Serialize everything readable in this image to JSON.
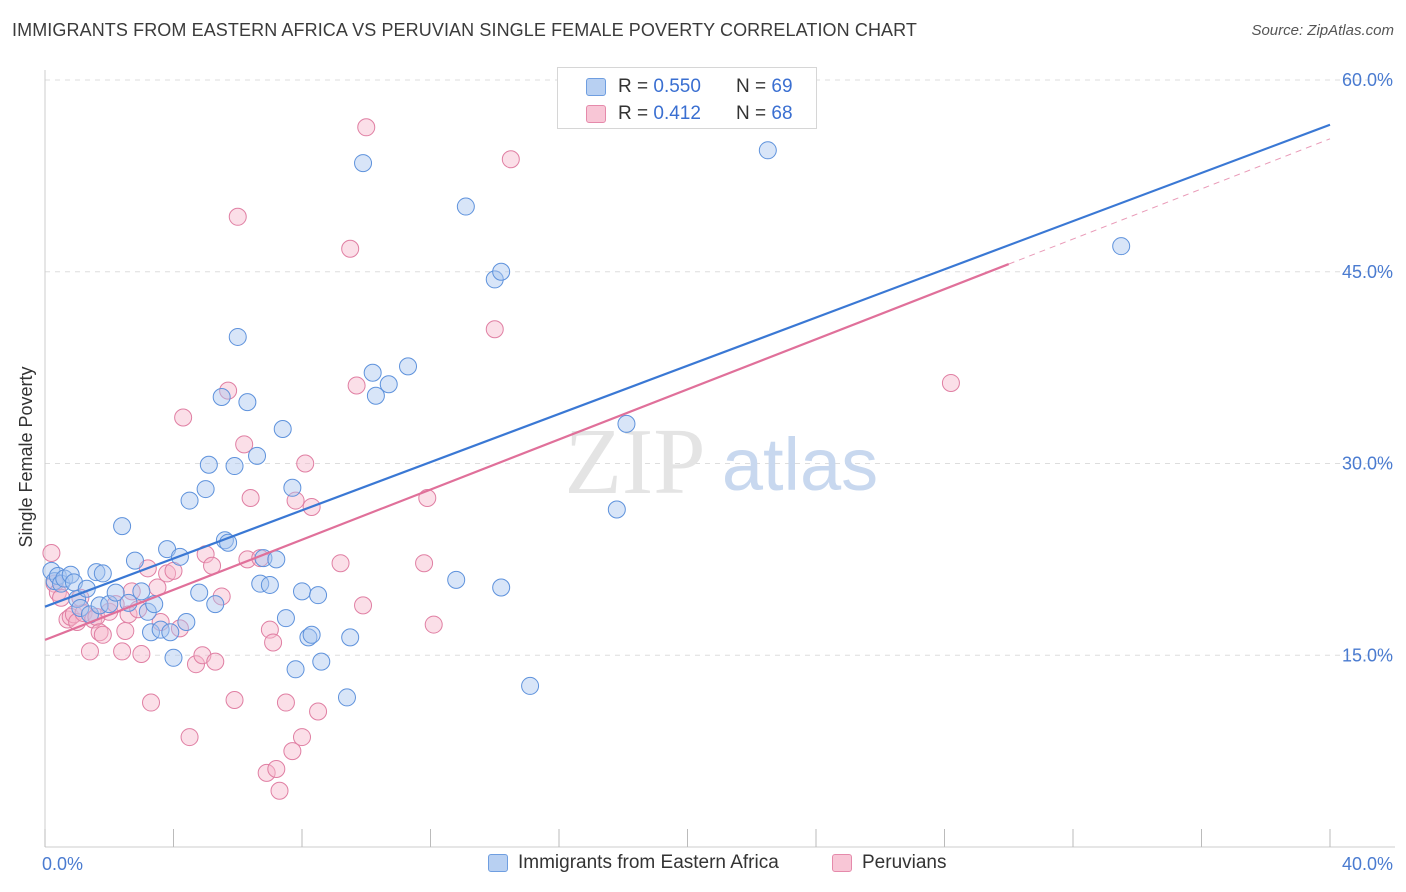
{
  "title": "IMMIGRANTS FROM EASTERN AFRICA VS PERUVIAN SINGLE FEMALE POVERTY CORRELATION CHART",
  "source": "Source: ZipAtlas.com",
  "watermark": {
    "zip": "ZIP",
    "atlas": "atlas"
  },
  "legend": {
    "series1": {
      "r_label": "R =",
      "r_value": "0.550",
      "n_label": "N =",
      "n_value": "69"
    },
    "series2": {
      "r_label": "R =",
      "r_value": "0.412",
      "n_label": "N =",
      "n_value": "68"
    }
  },
  "bottom_legend": {
    "series1_label": "Immigrants from Eastern Africa",
    "series2_label": "Peruvians"
  },
  "colors": {
    "blue": "#3a78d4",
    "pink": "#e0709a",
    "blue_fill": "#a9c6ef",
    "pink_fill": "#f6b9cc"
  },
  "chart_data": {
    "type": "scatter",
    "title": "IMMIGRANTS FROM EASTERN AFRICA VS PERUVIAN SINGLE FEMALE POVERTY CORRELATION CHART",
    "xlabel": "",
    "ylabel": "Single Female Poverty",
    "xlim": [
      0,
      40
    ],
    "ylim": [
      0,
      60
    ],
    "x_ticks_labels": [
      "0.0%",
      "40.0%"
    ],
    "y_ticks": [
      15,
      30,
      45,
      60
    ],
    "y_tick_labels": [
      "15.0%",
      "30.0%",
      "45.0%",
      "60.0%"
    ],
    "series": [
      {
        "name": "Immigrants from Eastern Africa",
        "color": "#3a78d4",
        "r": 0.55,
        "n": 69,
        "trend": {
          "x": [
            0,
            40
          ],
          "y": [
            18.8,
            56.5
          ]
        },
        "points": [
          [
            0.2,
            21.6
          ],
          [
            0.3,
            20.8
          ],
          [
            0.4,
            21.2
          ],
          [
            0.5,
            20.6
          ],
          [
            0.6,
            21.0
          ],
          [
            0.8,
            21.3
          ],
          [
            0.9,
            20.7
          ],
          [
            1.0,
            19.4
          ],
          [
            1.1,
            18.7
          ],
          [
            1.3,
            20.2
          ],
          [
            1.4,
            18.2
          ],
          [
            1.6,
            21.5
          ],
          [
            1.7,
            18.9
          ],
          [
            1.8,
            21.4
          ],
          [
            2.0,
            19.0
          ],
          [
            2.2,
            19.9
          ],
          [
            2.4,
            25.1
          ],
          [
            2.6,
            19.1
          ],
          [
            2.8,
            22.4
          ],
          [
            3.0,
            20.0
          ],
          [
            3.2,
            18.4
          ],
          [
            3.3,
            16.8
          ],
          [
            3.4,
            19.0
          ],
          [
            3.6,
            17.0
          ],
          [
            3.8,
            23.3
          ],
          [
            3.9,
            16.8
          ],
          [
            4.0,
            14.8
          ],
          [
            4.2,
            22.7
          ],
          [
            4.4,
            17.6
          ],
          [
            4.5,
            27.1
          ],
          [
            4.8,
            19.9
          ],
          [
            5.0,
            28.0
          ],
          [
            5.1,
            29.9
          ],
          [
            5.3,
            19.0
          ],
          [
            5.5,
            35.2
          ],
          [
            5.6,
            24.0
          ],
          [
            5.7,
            23.8
          ],
          [
            5.9,
            29.8
          ],
          [
            6.0,
            39.9
          ],
          [
            6.3,
            34.8
          ],
          [
            6.6,
            30.6
          ],
          [
            6.7,
            20.6
          ],
          [
            6.8,
            22.6
          ],
          [
            7.0,
            20.5
          ],
          [
            7.2,
            22.5
          ],
          [
            7.4,
            32.7
          ],
          [
            7.5,
            17.9
          ],
          [
            7.7,
            28.1
          ],
          [
            7.8,
            13.9
          ],
          [
            8.0,
            20.0
          ],
          [
            8.2,
            16.4
          ],
          [
            8.3,
            16.6
          ],
          [
            8.5,
            19.7
          ],
          [
            8.6,
            14.5
          ],
          [
            9.4,
            11.7
          ],
          [
            9.5,
            16.4
          ],
          [
            9.9,
            53.5
          ],
          [
            10.2,
            37.1
          ],
          [
            10.3,
            35.3
          ],
          [
            10.7,
            36.2
          ],
          [
            11.3,
            37.6
          ],
          [
            12.8,
            20.9
          ],
          [
            13.1,
            50.1
          ],
          [
            14.0,
            44.4
          ],
          [
            14.2,
            45.0
          ],
          [
            14.2,
            20.3
          ],
          [
            15.1,
            12.6
          ],
          [
            17.8,
            26.4
          ],
          [
            18.1,
            33.1
          ],
          [
            22.5,
            54.5
          ],
          [
            33.5,
            47.0
          ]
        ]
      },
      {
        "name": "Peruvians",
        "color": "#e0709a",
        "r": 0.412,
        "n": 68,
        "trend": {
          "x": [
            0,
            30
          ],
          "y": [
            16.2,
            45.6
          ]
        },
        "trend_extension": {
          "x": [
            30,
            40
          ],
          "y": [
            45.6,
            55.4
          ]
        },
        "points": [
          [
            0.2,
            23.0
          ],
          [
            0.3,
            20.6
          ],
          [
            0.4,
            19.9
          ],
          [
            0.5,
            19.5
          ],
          [
            0.7,
            17.8
          ],
          [
            0.8,
            18.0
          ],
          [
            0.9,
            18.2
          ],
          [
            1.0,
            17.6
          ],
          [
            1.1,
            19.5
          ],
          [
            1.2,
            18.3
          ],
          [
            1.4,
            15.3
          ],
          [
            1.5,
            17.8
          ],
          [
            1.6,
            18.0
          ],
          [
            1.7,
            16.8
          ],
          [
            1.8,
            16.6
          ],
          [
            2.0,
            18.4
          ],
          [
            2.2,
            19.0
          ],
          [
            2.4,
            15.3
          ],
          [
            2.5,
            16.9
          ],
          [
            2.6,
            18.2
          ],
          [
            2.7,
            20.0
          ],
          [
            2.9,
            18.6
          ],
          [
            3.0,
            15.1
          ],
          [
            3.2,
            21.8
          ],
          [
            3.3,
            11.3
          ],
          [
            3.5,
            20.3
          ],
          [
            3.6,
            17.6
          ],
          [
            3.8,
            21.4
          ],
          [
            4.0,
            21.6
          ],
          [
            4.2,
            17.1
          ],
          [
            4.3,
            33.6
          ],
          [
            4.5,
            8.6
          ],
          [
            4.7,
            14.3
          ],
          [
            4.9,
            15.0
          ],
          [
            5.0,
            22.9
          ],
          [
            5.2,
            22.0
          ],
          [
            5.3,
            14.5
          ],
          [
            5.5,
            19.6
          ],
          [
            5.7,
            35.7
          ],
          [
            5.9,
            11.5
          ],
          [
            6.0,
            49.3
          ],
          [
            6.2,
            31.5
          ],
          [
            6.3,
            22.5
          ],
          [
            6.4,
            27.3
          ],
          [
            6.7,
            22.6
          ],
          [
            6.9,
            5.8
          ],
          [
            7.0,
            17.0
          ],
          [
            7.1,
            16.0
          ],
          [
            7.2,
            6.1
          ],
          [
            7.3,
            4.4
          ],
          [
            7.5,
            11.3
          ],
          [
            7.7,
            7.5
          ],
          [
            7.8,
            27.1
          ],
          [
            8.0,
            8.6
          ],
          [
            8.1,
            30.0
          ],
          [
            8.3,
            26.6
          ],
          [
            8.5,
            10.6
          ],
          [
            9.2,
            22.2
          ],
          [
            9.5,
            46.8
          ],
          [
            9.7,
            36.1
          ],
          [
            9.9,
            18.9
          ],
          [
            10.0,
            56.3
          ],
          [
            11.8,
            22.2
          ],
          [
            11.9,
            27.3
          ],
          [
            12.1,
            17.4
          ],
          [
            14.0,
            40.5
          ],
          [
            14.5,
            53.8
          ],
          [
            28.2,
            36.3
          ]
        ]
      }
    ]
  }
}
